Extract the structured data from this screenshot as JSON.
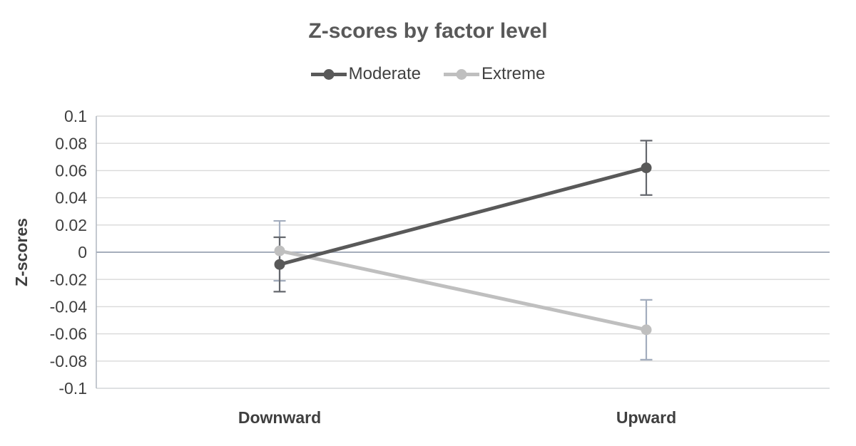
{
  "title": "Z-scores by factor level",
  "colors": {
    "background": "#ffffff",
    "title": "#595959",
    "text": "#404040",
    "category_text": "#3f3f3f",
    "gridline": "#d9d9d9",
    "zero_line": "#a6aebb",
    "axis_line": "#b0b7c1",
    "bottom_line": "#d4d6d9"
  },
  "legend": {
    "position": "top",
    "items": [
      {
        "label": "Moderate"
      },
      {
        "label": "Extreme"
      }
    ]
  },
  "chart_data": {
    "type": "line",
    "title": "Z-scores by factor level",
    "xlabel": "",
    "ylabel": "Z-scores",
    "categories": [
      "Downward",
      "Upward"
    ],
    "series": [
      {
        "name": "Moderate",
        "values": [
          -0.009,
          0.062
        ],
        "error": [
          0.02,
          0.02
        ],
        "error_low": [
          -0.029,
          0.042
        ],
        "error_high": [
          0.011,
          0.082
        ],
        "color": "#595959",
        "error_color": "#64676d"
      },
      {
        "name": "Extreme",
        "values": [
          0.001,
          -0.057
        ],
        "error": [
          0.022,
          0.022
        ],
        "error_low": [
          -0.021,
          -0.079
        ],
        "error_high": [
          0.023,
          -0.035
        ],
        "color": "#bfbfbf",
        "error_color": "#a3adbe"
      }
    ],
    "ylim": [
      -0.1,
      0.1
    ],
    "ytick_step": 0.02,
    "yticks": [
      "0.1",
      "0.08",
      "0.06",
      "0.04",
      "0.02",
      "0",
      "-0.02",
      "-0.04",
      "-0.06",
      "-0.08",
      "-0.1"
    ],
    "grid": true,
    "legend_position": "top-center",
    "marker": "circle"
  }
}
